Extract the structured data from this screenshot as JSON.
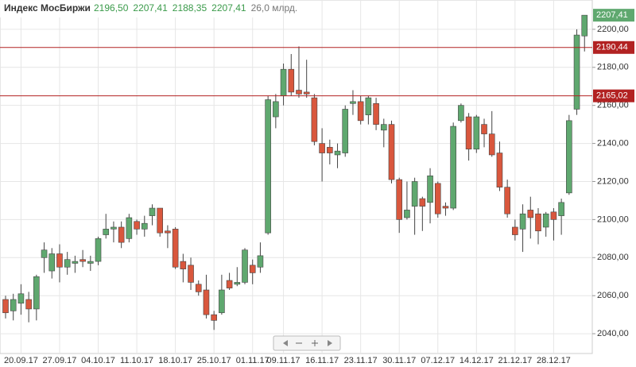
{
  "chart_data": {
    "type": "candlestick",
    "title": "Индекс МосБиржи",
    "header_values": [
      "2196,50",
      "2207,41",
      "2188,35",
      "2207,41",
      "26,0 млрд."
    ],
    "categories": [
      null,
      null,
      "20.09.17",
      null,
      null,
      null,
      null,
      "27.09.17",
      null,
      null,
      null,
      null,
      "04.10.17",
      null,
      null,
      null,
      null,
      "11.10.17",
      null,
      null,
      null,
      null,
      "18.10.17",
      null,
      null,
      null,
      null,
      "25.10.17",
      null,
      null,
      null,
      null,
      "01.11.17",
      null,
      null,
      null,
      "09.11.17",
      null,
      null,
      null,
      null,
      "16.11.17",
      null,
      null,
      null,
      null,
      "23.11.17",
      null,
      null,
      null,
      null,
      "30.11.17",
      null,
      null,
      null,
      null,
      "07.12.17",
      null,
      null,
      null,
      null,
      "14.12.17",
      null,
      null,
      null,
      null,
      "21.12.17",
      null,
      null,
      null,
      null,
      "28.12.17",
      null,
      null,
      null,
      null
    ],
    "open": [
      2058,
      2052,
      2056,
      2058,
      2053,
      2080,
      2073,
      2082,
      2075,
      2077,
      2079,
      2077,
      2078,
      2092,
      2095,
      2096,
      2090,
      2099,
      2095,
      2102,
      2106,
      2094,
      2095,
      2078,
      2076,
      2066,
      2063,
      2050,
      2051,
      2068,
      2066,
      2067,
      2076,
      2075,
      2093,
      2154,
      2165,
      2179,
      2168,
      2167,
      2164,
      2140,
      2138,
      2134,
      2135,
      2161,
      2162,
      2155,
      2161,
      2147,
      2150,
      2121,
      2101,
      2107,
      2111,
      2109,
      2119,
      2107,
      2106,
      2152,
      2154,
      2137,
      2150,
      2145,
      2135,
      2117,
      2096,
      2095,
      2105,
      2103,
      2096,
      2104,
      2102,
      2114,
      2158,
      2196.5
    ],
    "high": [
      2060,
      2061,
      2066,
      2062,
      2071,
      2088,
      2085,
      2087,
      2083,
      2081,
      2084,
      2081,
      2091,
      2103,
      2099,
      2099,
      2103,
      2100,
      2102,
      2108,
      2106,
      2097,
      2096,
      2082,
      2080,
      2068,
      2071,
      2052,
      2071,
      2072,
      2075,
      2085,
      2079,
      2088,
      2165,
      2166,
      2182,
      2187,
      2191,
      2184,
      2166,
      2148,
      2142,
      2140,
      2160,
      2168,
      2165,
      2165,
      2164,
      2153,
      2152,
      2122,
      2120,
      2122,
      2112,
      2127,
      2120,
      2109,
      2151,
      2161,
      2156,
      2155,
      2153,
      2157,
      2141,
      2121,
      2100,
      2108,
      2112,
      2106,
      2104,
      2106,
      2111,
      2155,
      2200,
      2207.41
    ],
    "low": [
      2048,
      2047,
      2050,
      2046,
      2047,
      2072,
      2069,
      2067,
      2071,
      2072,
      2075,
      2073,
      2076,
      2090,
      2088,
      2085,
      2088,
      2092,
      2091,
      2097,
      2091,
      2085,
      2074,
      2067,
      2063,
      2060,
      2048,
      2042,
      2050,
      2063,
      2065,
      2066,
      2066,
      2072,
      2092,
      2148,
      2160,
      2165,
      2164,
      2164,
      2139,
      2120,
      2129,
      2127,
      2133,
      2155,
      2150,
      2150,
      2147,
      2138,
      2119,
      2093,
      2100,
      2092,
      2094,
      2098,
      2101,
      2102,
      2105,
      2151,
      2131,
      2135,
      2138,
      2133,
      2115,
      2101,
      2089,
      2083,
      2090,
      2087,
      2091,
      2089,
      2092,
      2113,
      2155,
      2188.35
    ],
    "close": [
      2051,
      2058,
      2061,
      2053,
      2070,
      2084,
      2082,
      2075,
      2079,
      2078,
      2078,
      2078,
      2090,
      2095,
      2096,
      2088,
      2101,
      2095,
      2098,
      2106,
      2093,
      2093,
      2075,
      2074,
      2067,
      2062,
      2050,
      2047,
      2063,
      2064,
      2067,
      2084,
      2072,
      2081,
      2163,
      2162,
      2179,
      2167,
      2166,
      2166,
      2141,
      2135,
      2135,
      2136,
      2158,
      2162,
      2152,
      2164,
      2150,
      2150,
      2121,
      2100,
      2105,
      2120,
      2107,
      2123,
      2103,
      2106,
      2149,
      2160,
      2137,
      2154,
      2145,
      2134,
      2117,
      2103,
      2092,
      2103,
      2101,
      2094,
      2103,
      2100,
      2109,
      2152,
      2197,
      2207.41
    ],
    "up_color": "#5fa86f",
    "down_color": "#d9573d",
    "ylim": [
      2029.6,
      2215.4
    ],
    "yticks": [
      {
        "value": 2040,
        "label": "2040,00"
      },
      {
        "value": 2060,
        "label": "2060,00"
      },
      {
        "value": 2080,
        "label": "2080,00"
      },
      {
        "value": 2100,
        "label": "2100,00"
      },
      {
        "value": 2120,
        "label": "2120,00"
      },
      {
        "value": 2140,
        "label": "2140,00"
      },
      {
        "value": 2160,
        "label": "2160,00"
      },
      {
        "value": 2180,
        "label": "2180,00"
      },
      {
        "value": 2200,
        "label": "2200,00"
      }
    ],
    "levels": [
      {
        "value": 2190.44,
        "label": "2190,44"
      },
      {
        "value": 2165.02,
        "label": "2165,02"
      }
    ],
    "level_color": "#b22222",
    "last_price": {
      "value": 2207.41,
      "label": "2207,41"
    },
    "grid": true
  }
}
